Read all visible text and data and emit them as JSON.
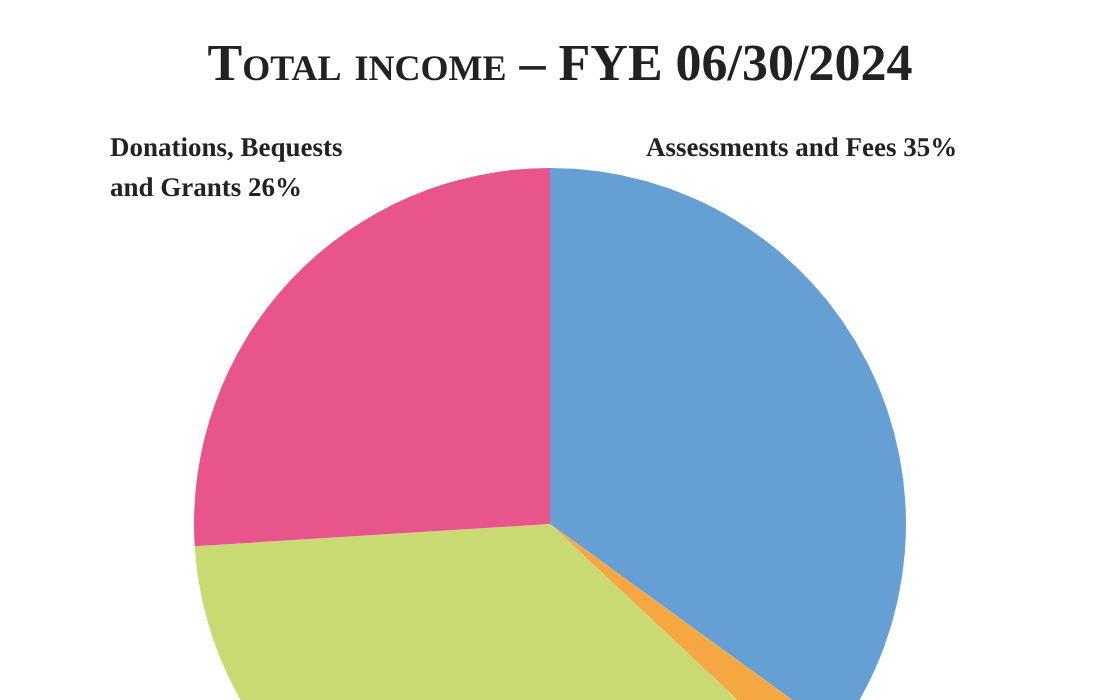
{
  "chart_data": {
    "type": "pie",
    "title": "Total income – FYE 06/30/2024",
    "categories": [
      "Assessments and Fees 35%",
      null,
      null,
      "Donations, Bequests and Grants 26%"
    ],
    "values": [
      35,
      2,
      37,
      26
    ],
    "colors": [
      "#659fd4",
      "#f5a742",
      "#c9da72",
      "#e8548c"
    ]
  }
}
